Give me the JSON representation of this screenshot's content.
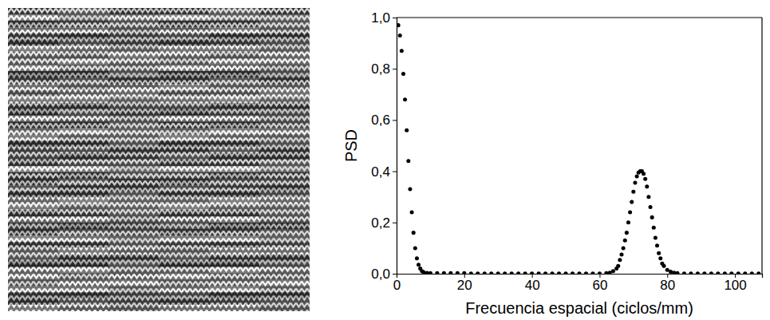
{
  "chart_data": {
    "type": "scatter",
    "marker": "circle",
    "color": "#000000",
    "x_label": "Frecuencia espacial (ciclos/mm)",
    "y_label": "PSD",
    "x": [
      0.5,
      1,
      1.5,
      2,
      2.5,
      3,
      3.5,
      4,
      4.5,
      5,
      5.5,
      6,
      6.5,
      7,
      7.5,
      8,
      9,
      10,
      12,
      14,
      16,
      18,
      20,
      22,
      24,
      26,
      28,
      30,
      32,
      34,
      36,
      38,
      40,
      42,
      44,
      46,
      48,
      50,
      52,
      54,
      56,
      58,
      60,
      62,
      63,
      64,
      65,
      65.5,
      66,
      66.5,
      67,
      67.5,
      68,
      68.5,
      69,
      69.5,
      70,
      70.5,
      71,
      71.5,
      72,
      72.5,
      73,
      73.5,
      74,
      74.5,
      75,
      75.5,
      76,
      76.5,
      77,
      77.5,
      78,
      78.5,
      79,
      80,
      81,
      82,
      83,
      85,
      87,
      89,
      91,
      93,
      95,
      97,
      99,
      101,
      103,
      105,
      107
    ],
    "values": [
      0.97,
      0.93,
      0.87,
      0.78,
      0.68,
      0.56,
      0.44,
      0.33,
      0.24,
      0.16,
      0.1,
      0.06,
      0.035,
      0.02,
      0.01,
      0.006,
      0.003,
      0.002,
      0.002,
      0.002,
      0.002,
      0.002,
      0.002,
      0.001,
      0.001,
      0.001,
      0.001,
      0.001,
      0.001,
      0.001,
      0.001,
      0.001,
      0.001,
      0.001,
      0.001,
      0.001,
      0.001,
      0.001,
      0.001,
      0.001,
      0.001,
      0.001,
      0.001,
      0.002,
      0.004,
      0.01,
      0.02,
      0.03,
      0.054,
      0.075,
      0.1,
      0.13,
      0.16,
      0.2,
      0.24,
      0.28,
      0.32,
      0.355,
      0.38,
      0.395,
      0.4,
      0.4,
      0.39,
      0.37,
      0.34,
      0.3,
      0.26,
      0.22,
      0.18,
      0.14,
      0.11,
      0.08,
      0.06,
      0.04,
      0.03,
      0.015,
      0.008,
      0.004,
      0.002,
      0.001,
      0.001,
      0.001,
      0.001,
      0.001,
      0.001,
      0.001,
      0.001,
      0.001,
      0.001,
      0.001,
      0.001
    ],
    "xlim": [
      0,
      108
    ],
    "xticks": [
      0,
      20,
      40,
      60,
      80,
      100
    ],
    "ylim": [
      0,
      1
    ],
    "yticks": [
      {
        "value": 0,
        "label": "0,0"
      },
      {
        "value": 0.2,
        "label": "0,2"
      },
      {
        "value": 0.4,
        "label": "0,4"
      },
      {
        "value": 0.6,
        "label": "0,6"
      },
      {
        "value": 0.8,
        "label": "0,8"
      },
      {
        "value": 1,
        "label": "1,0"
      }
    ],
    "grid": false
  }
}
